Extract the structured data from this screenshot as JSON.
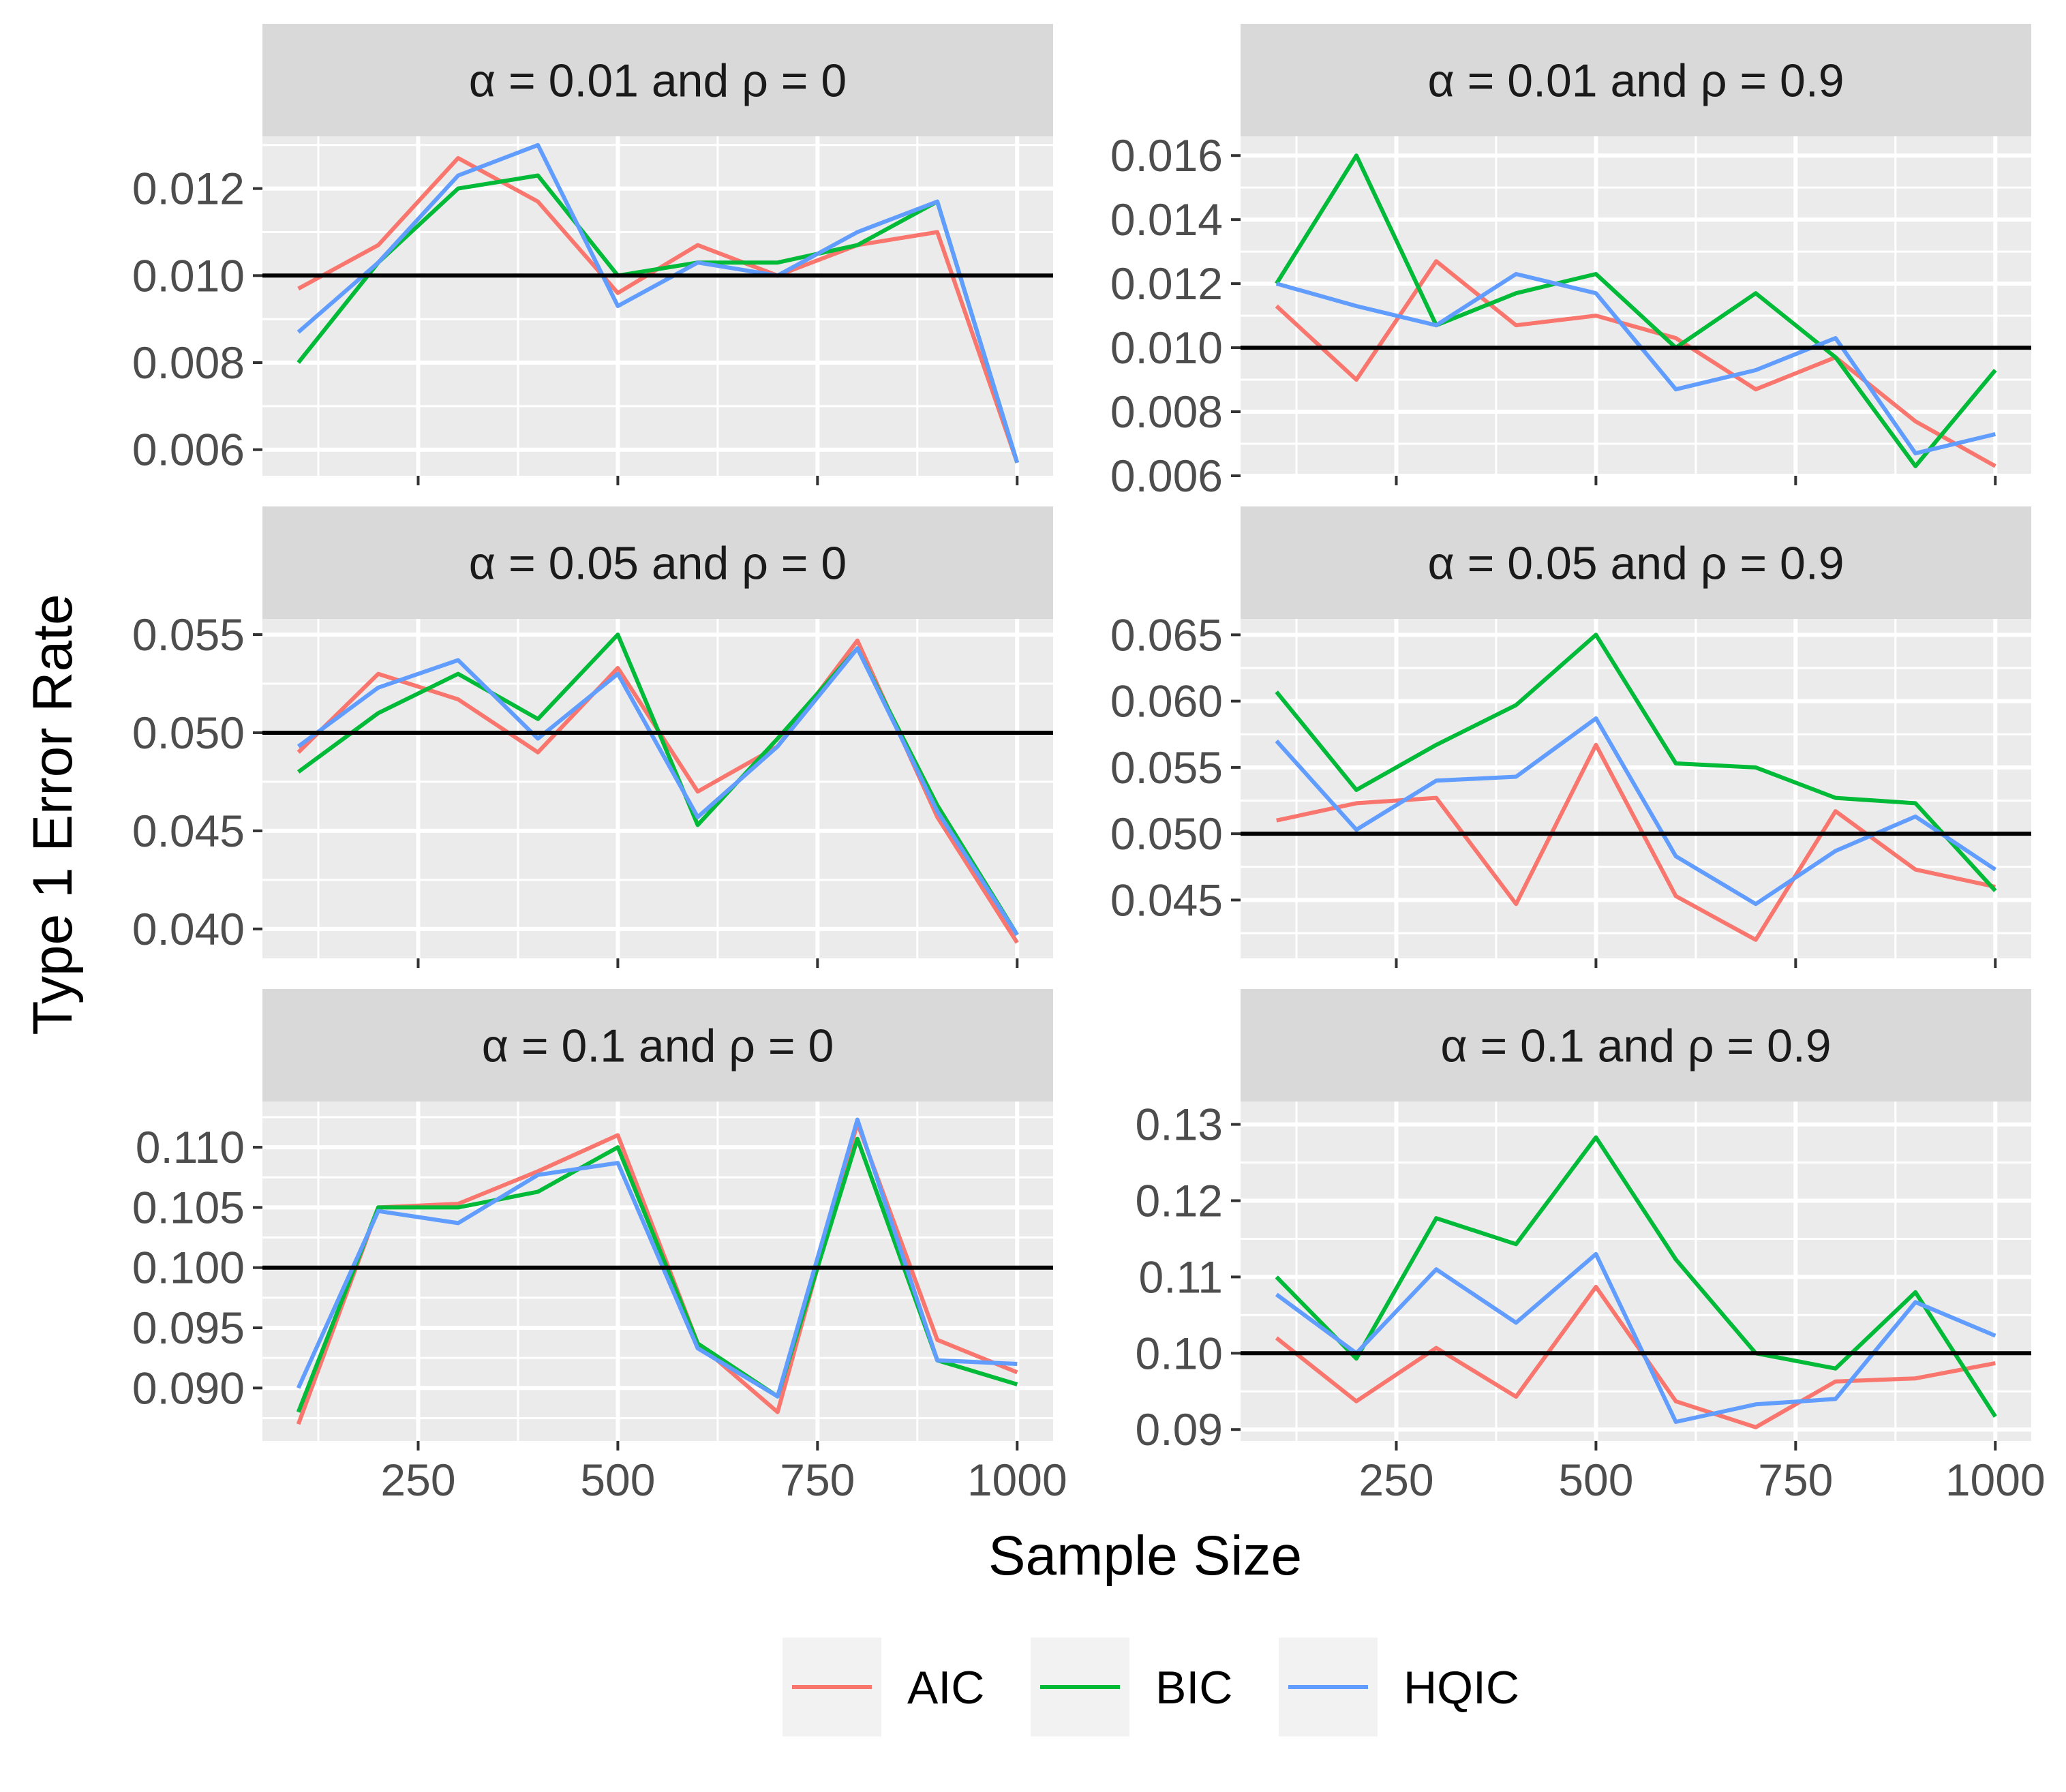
{
  "chart_data": {
    "type": "line",
    "xlabel": "Sample Size",
    "ylabel": "Type 1 Error Rate",
    "x": [
      100,
      200,
      300,
      400,
      500,
      600,
      700,
      800,
      900,
      1000
    ],
    "x_ticks": [
      250,
      500,
      750,
      1000
    ],
    "x_tick_labels": [
      "250",
      "500",
      "750",
      "1000"
    ],
    "xlim": [
      55,
      1045
    ],
    "legend": {
      "position": "bottom",
      "entries": [
        {
          "name": "AIC",
          "color": "#F8766D"
        },
        {
          "name": "BIC",
          "color": "#00BA38"
        },
        {
          "name": "HQIC",
          "color": "#619CFF"
        }
      ]
    },
    "panels": [
      {
        "title": "α = 0.01 and ρ = 0",
        "reference_line": 0.01,
        "ylim": [
          0.0054,
          0.0132
        ],
        "y_ticks": [
          0.006,
          0.008,
          0.01,
          0.012
        ],
        "y_tick_labels": [
          "0.006",
          "0.008",
          "0.010",
          "0.012"
        ],
        "series": [
          {
            "name": "AIC",
            "values": [
              0.0097,
              0.0107,
              0.0127,
              0.0117,
              0.0096,
              0.0107,
              0.01,
              0.0107,
              0.011,
              0.0057
            ]
          },
          {
            "name": "BIC",
            "values": [
              0.008,
              0.0103,
              0.012,
              0.0123,
              0.01,
              0.0103,
              0.0103,
              0.0107,
              0.0117,
              0.0057
            ]
          },
          {
            "name": "HQIC",
            "values": [
              0.0087,
              0.0103,
              0.0123,
              0.013,
              0.0093,
              0.0103,
              0.01,
              0.011,
              0.0117,
              0.0057
            ]
          }
        ]
      },
      {
        "title": "α = 0.01 and ρ = 0.9",
        "reference_line": 0.01,
        "ylim": [
          0.006,
          0.0166
        ],
        "y_ticks": [
          0.006,
          0.008,
          0.01,
          0.012,
          0.014,
          0.016
        ],
        "y_tick_labels": [
          "0.006",
          "0.008",
          "0.010",
          "0.012",
          "0.014",
          "0.016"
        ],
        "series": [
          {
            "name": "AIC",
            "values": [
              0.0113,
              0.009,
              0.0127,
              0.0107,
              0.011,
              0.0103,
              0.0087,
              0.0097,
              0.0077,
              0.0063
            ]
          },
          {
            "name": "BIC",
            "values": [
              0.012,
              0.016,
              0.0107,
              0.0117,
              0.0123,
              0.01,
              0.0117,
              0.0097,
              0.0063,
              0.0093
            ]
          },
          {
            "name": "HQIC",
            "values": [
              0.012,
              0.0113,
              0.0107,
              0.0123,
              0.0117,
              0.0087,
              0.0093,
              0.0103,
              0.0067,
              0.0073
            ]
          }
        ]
      },
      {
        "title": "α = 0.05 and ρ = 0",
        "reference_line": 0.05,
        "ylim": [
          0.0385,
          0.0558
        ],
        "y_ticks": [
          0.04,
          0.045,
          0.05,
          0.055
        ],
        "y_tick_labels": [
          "0.040",
          "0.045",
          "0.050",
          "0.055"
        ],
        "series": [
          {
            "name": "AIC",
            "values": [
              0.049,
              0.053,
              0.0517,
              0.049,
              0.0533,
              0.047,
              0.0493,
              0.0547,
              0.0457,
              0.0393
            ]
          },
          {
            "name": "BIC",
            "values": [
              0.048,
              0.051,
              0.053,
              0.0507,
              0.055,
              0.0453,
              0.0497,
              0.0543,
              0.0463,
              0.0397
            ]
          },
          {
            "name": "HQIC",
            "values": [
              0.0493,
              0.0523,
              0.0537,
              0.0497,
              0.053,
              0.0457,
              0.0493,
              0.0543,
              0.046,
              0.0397
            ]
          }
        ]
      },
      {
        "title": "α = 0.05 and ρ = 0.9",
        "reference_line": 0.05,
        "ylim": [
          0.0406,
          0.0662
        ],
        "y_ticks": [
          0.045,
          0.05,
          0.055,
          0.06,
          0.065
        ],
        "y_tick_labels": [
          "0.045",
          "0.050",
          "0.055",
          "0.060",
          "0.065"
        ],
        "series": [
          {
            "name": "AIC",
            "values": [
              0.051,
              0.0523,
              0.0527,
              0.0447,
              0.0567,
              0.0453,
              0.042,
              0.0517,
              0.0473,
              0.046
            ]
          },
          {
            "name": "BIC",
            "values": [
              0.0607,
              0.0533,
              0.0567,
              0.0597,
              0.065,
              0.0553,
              0.055,
              0.0527,
              0.0523,
              0.0457
            ]
          },
          {
            "name": "HQIC",
            "values": [
              0.057,
              0.0503,
              0.054,
              0.0543,
              0.0587,
              0.0483,
              0.0447,
              0.0487,
              0.0513,
              0.0473
            ]
          }
        ]
      },
      {
        "title": "α = 0.1 and ρ = 0",
        "reference_line": 0.1,
        "ylim": [
          0.0856,
          0.1138
        ],
        "y_ticks": [
          0.09,
          0.095,
          0.1,
          0.105,
          0.11
        ],
        "y_tick_labels": [
          "0.090",
          "0.095",
          "0.100",
          "0.105",
          "0.110"
        ],
        "series": [
          {
            "name": "AIC",
            "values": [
              0.087,
              0.105,
              0.1053,
              0.108,
              0.111,
              0.0937,
              0.088,
              0.112,
              0.094,
              0.0913
            ]
          },
          {
            "name": "BIC",
            "values": [
              0.088,
              0.105,
              0.105,
              0.1063,
              0.11,
              0.0937,
              0.0893,
              0.1107,
              0.0923,
              0.0903
            ]
          },
          {
            "name": "HQIC",
            "values": [
              0.09,
              0.1047,
              0.1037,
              0.1077,
              0.1087,
              0.0933,
              0.0893,
              0.1123,
              0.0923,
              0.092
            ]
          }
        ]
      },
      {
        "title": "α = 0.1 and ρ = 0.9",
        "reference_line": 0.1,
        "ylim": [
          0.0885,
          0.133
        ],
        "y_ticks": [
          0.09,
          0.1,
          0.11,
          0.12,
          0.13
        ],
        "y_tick_labels": [
          "0.09",
          "0.10",
          "0.11",
          "0.12",
          "0.13"
        ],
        "series": [
          {
            "name": "AIC",
            "values": [
              0.102,
              0.0937,
              0.1007,
              0.0943,
              0.1087,
              0.0937,
              0.0903,
              0.0963,
              0.0967,
              0.0987
            ]
          },
          {
            "name": "BIC",
            "values": [
              0.11,
              0.0993,
              0.1177,
              0.1143,
              0.1283,
              0.1123,
              0.1,
              0.098,
              0.108,
              0.0917
            ]
          },
          {
            "name": "HQIC",
            "values": [
              0.1077,
              0.1,
              0.111,
              0.104,
              0.113,
              0.091,
              0.0933,
              0.094,
              0.1067,
              0.1023
            ]
          }
        ]
      }
    ]
  }
}
